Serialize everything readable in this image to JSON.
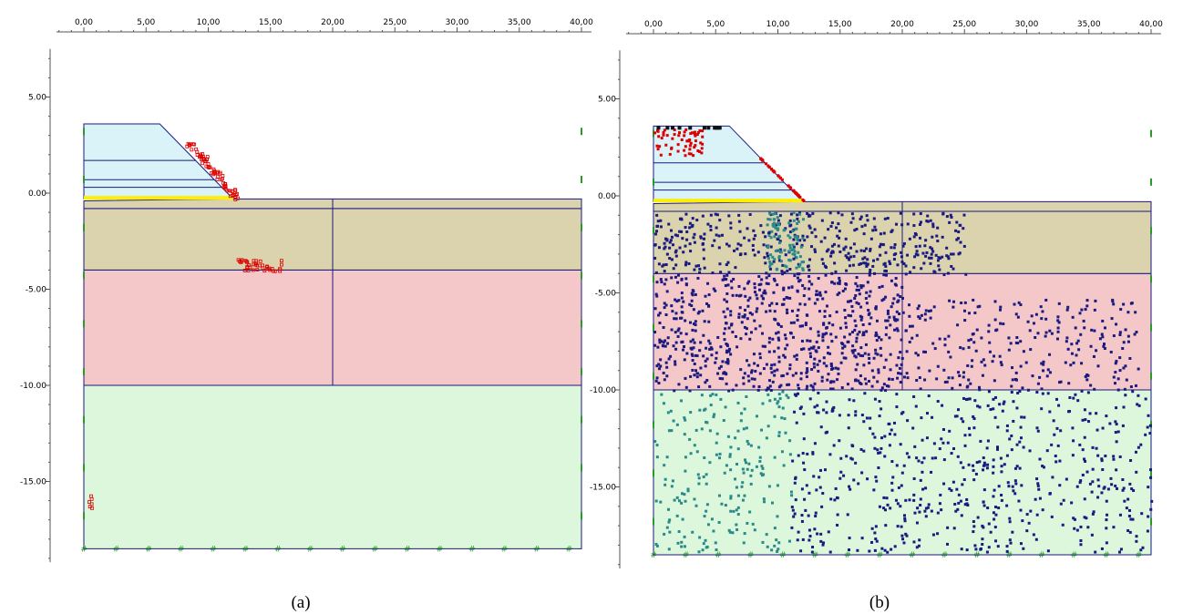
{
  "panels": [
    {
      "caption": "(a)",
      "x_tick_labels": [
        "0,00",
        "5,00",
        "10,00",
        "15,00",
        "20,00",
        "25,00",
        "30,00",
        "35,00",
        "40,00"
      ],
      "y_tick_labels": [
        "5.00",
        "0.00",
        "-5.00",
        "-10.00",
        "-15.00"
      ]
    },
    {
      "caption": "(b)",
      "x_tick_labels": [
        "0,00",
        "5,00",
        "10,00",
        "15,00",
        "20,00",
        "25,00",
        "30,00",
        "35,00",
        "40,00"
      ],
      "y_tick_labels": [
        "5.00",
        "0.00",
        "-5.00",
        "-10.00",
        "-15.00"
      ]
    }
  ]
}
